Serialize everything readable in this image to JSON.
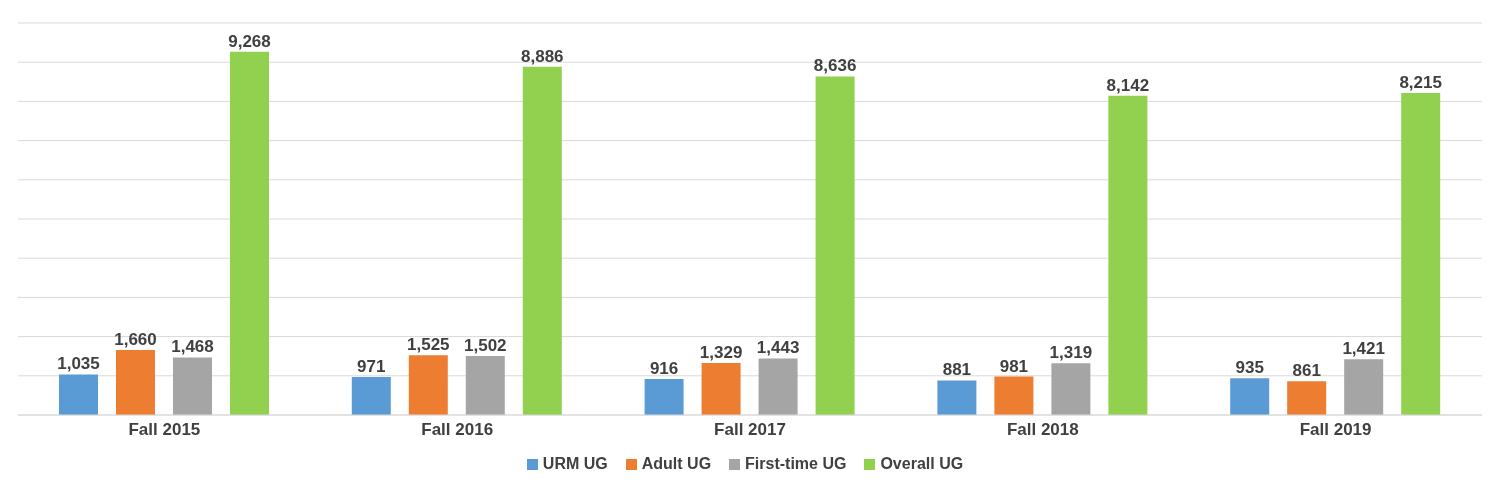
{
  "chart_data": {
    "type": "bar",
    "categories": [
      "Fall 2015",
      "Fall 2016",
      "Fall 2017",
      "Fall 2018",
      "Fall 2019"
    ],
    "series": [
      {
        "name": "URM UG",
        "color": "#5b9bd5",
        "values": [
          1035,
          971,
          916,
          881,
          935
        ],
        "value_labels": [
          "1,035",
          "971",
          "916",
          "881",
          "935"
        ]
      },
      {
        "name": "Adult UG",
        "color": "#ed7d31",
        "values": [
          1660,
          1525,
          1329,
          981,
          861
        ],
        "value_labels": [
          "1,660",
          "1,525",
          "1,329",
          "981",
          "861"
        ]
      },
      {
        "name": "First-time UG",
        "color": "#a5a5a5",
        "values": [
          1468,
          1502,
          1443,
          1319,
          1421
        ],
        "value_labels": [
          "1,468",
          "1,502",
          "1,443",
          "1,319",
          "1,421"
        ]
      },
      {
        "name": "Overall UG",
        "color": "#92d050",
        "values": [
          9268,
          8886,
          8636,
          8142,
          8215
        ],
        "value_labels": [
          "9,268",
          "8,886",
          "8,636",
          "8,142",
          "8,215"
        ]
      }
    ],
    "ylim": [
      0,
      10000
    ],
    "yticks": [
      {
        "value": 0,
        "label": null
      },
      {
        "value": 1000,
        "label": null
      },
      {
        "value": 2000,
        "label": null
      },
      {
        "value": 3000,
        "label": null
      },
      {
        "value": 4000,
        "label": null
      },
      {
        "value": 5000,
        "label": null
      },
      {
        "value": 6000,
        "label": null
      },
      {
        "value": 7000,
        "label": null
      },
      {
        "value": 8000,
        "label": null
      },
      {
        "value": 9000,
        "label": null
      },
      {
        "value": 10000,
        "label": null
      }
    ],
    "grid": "y",
    "legend": "bottom",
    "tick_labels": "x"
  }
}
